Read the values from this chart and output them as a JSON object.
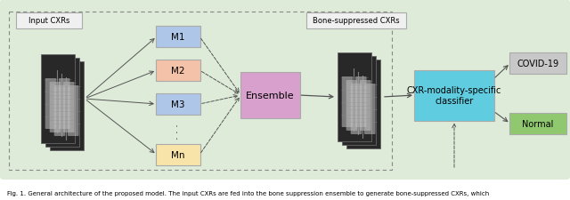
{
  "bg_color": "#deebd8",
  "fig_bg": "#ffffff",
  "caption": "Fig. 1. General architecture of the proposed model. The input CXRs are fed into the bone suppression ensemble to generate bone-suppressed CXRs, which",
  "label_input": "Input CXRs",
  "label_bone": "Bone-suppressed CXRs",
  "label_ensemble": "Ensemble",
  "label_classifier": "CXR-modality-specific\nclassifier",
  "label_covid": "COVID-19",
  "label_normal": "Normal",
  "models": [
    "M1",
    "M2",
    "M3",
    "Mn"
  ],
  "model_colors": [
    "#aec6e8",
    "#f4c2a8",
    "#aec6e8",
    "#f8e4a8"
  ],
  "ensemble_color": "#d8a0cc",
  "classifier_color": "#60cce0",
  "covid_color": "#c8c8c8",
  "normal_color": "#90c870",
  "box_edge_color": "#aaaaaa",
  "arrow_color": "#555555",
  "dashed_color": "#888888"
}
